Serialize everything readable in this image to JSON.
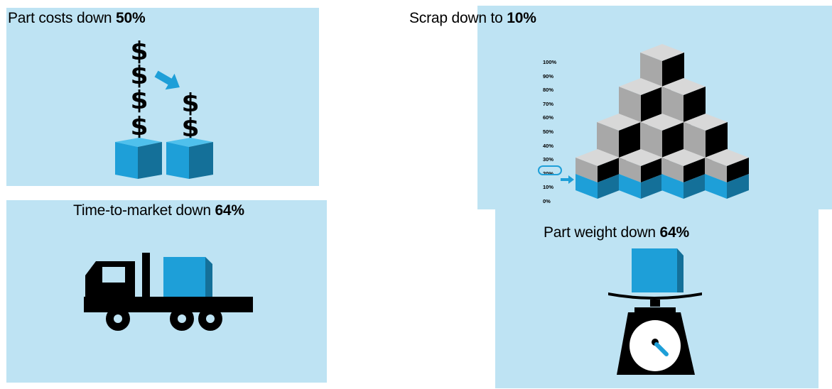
{
  "panels": {
    "part_costs": {
      "title_prefix": "Part costs down ",
      "title_value": "50%",
      "icon": "dollar-stack-boxes-icon"
    },
    "scrap": {
      "title_prefix": "Scrap down to ",
      "title_value": "10%",
      "icon": "cube-pyramid-icon",
      "ticks": [
        "100%",
        "90%",
        "80%",
        "70%",
        "60%",
        "50%",
        "40%",
        "30%",
        "20%",
        "10%",
        "0%"
      ],
      "highlighted_tick": "20%"
    },
    "time_to_market": {
      "title_prefix": "Time-to-market  down ",
      "title_value": "64%",
      "icon": "truck-icon"
    },
    "part_weight": {
      "title_prefix": "Part weight  down ",
      "title_value": "64%",
      "icon": "scale-icon"
    }
  },
  "colors": {
    "panel_bg": "#bee3f3",
    "cube_front": "#1e9fd8",
    "cube_side": "#147099",
    "cube_top": "#4fc0ec",
    "grey_top": "#d8d8d8",
    "grey_front": "#a8a8a8",
    "black": "#000000"
  }
}
